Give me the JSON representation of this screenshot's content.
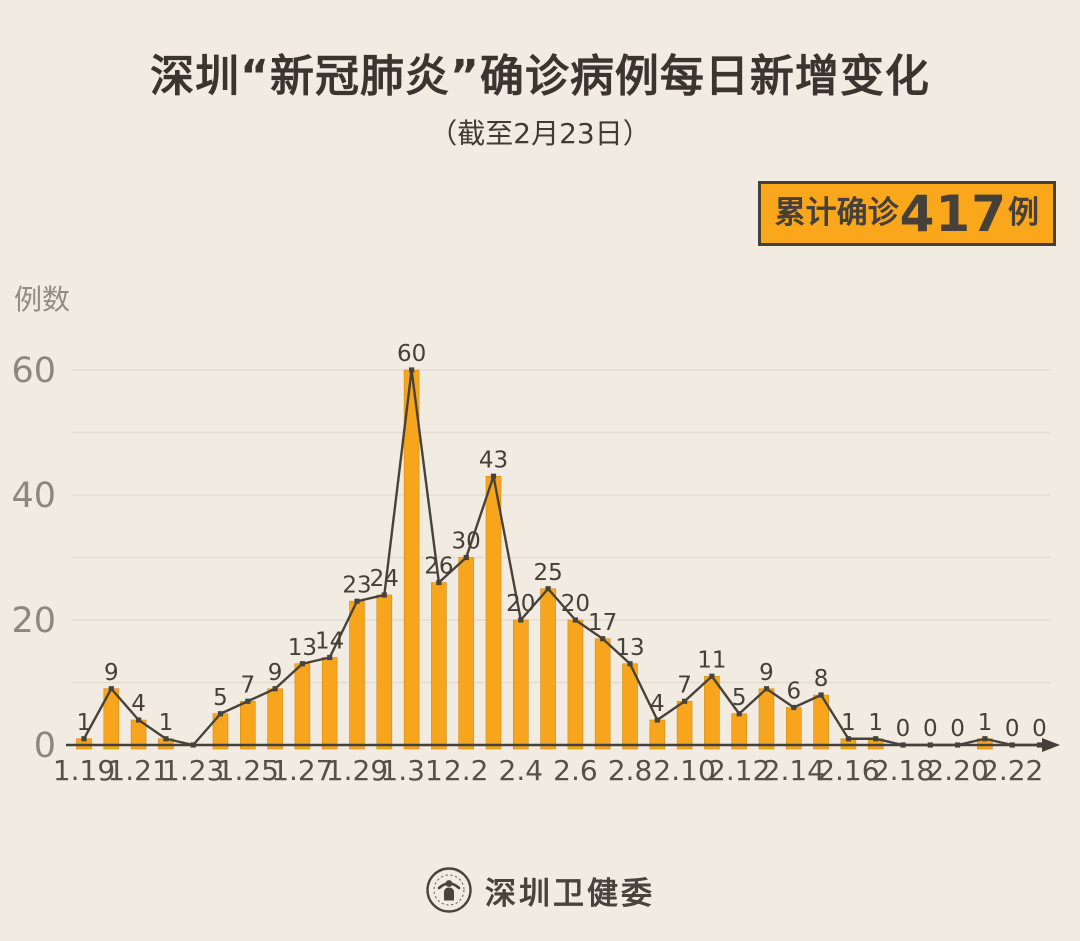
{
  "title": "深圳“新冠肺炎”确诊病例每日新增变化",
  "subtitle": "（截至2月23日）",
  "badge": {
    "prefix": "累计确诊",
    "value": "417",
    "suffix": "例"
  },
  "footer": {
    "org_name": "深圳卫健委"
  },
  "colors": {
    "background": "#F2EBE2",
    "bar": "#F7A51C",
    "bar_edge": "#D18C12",
    "line": "#48423C",
    "grid": "#E4DCD0",
    "axis": "#45403A",
    "y_tick_label": "#8E8780",
    "x_tick_label": "#55504A",
    "point_label": "#45403A",
    "badge_bg": "#FAA71C",
    "badge_border": "#45403A"
  },
  "chart_data": {
    "type": "bar",
    "note": "bar chart with overlaid line and square point markers; daily new confirmed cases",
    "title": "深圳“新冠肺炎”确诊病例每日新增变化（截至2月23日）",
    "xlabel": "",
    "ylabel": "例数",
    "categories": [
      "1.19",
      "1.20",
      "1.21",
      "1.22",
      "1.23",
      "1.24",
      "1.25",
      "1.26",
      "1.27",
      "1.28",
      "1.29",
      "1.30",
      "1.31",
      "2.1",
      "2.2",
      "2.3",
      "2.4",
      "2.5",
      "2.6",
      "2.7",
      "2.8",
      "2.9",
      "2.10",
      "2.11",
      "2.12",
      "2.13",
      "2.14",
      "2.15",
      "2.16",
      "2.17",
      "2.18",
      "2.19",
      "2.20",
      "2.21",
      "2.22",
      "2.23"
    ],
    "values": [
      1,
      9,
      4,
      1,
      0,
      5,
      7,
      9,
      13,
      14,
      23,
      24,
      60,
      26,
      30,
      43,
      20,
      25,
      20,
      17,
      13,
      4,
      7,
      11,
      5,
      9,
      6,
      8,
      1,
      1,
      0,
      0,
      0,
      1,
      0,
      0
    ],
    "point_labels": [
      "1",
      "9",
      "4",
      "1",
      "",
      "5",
      "7",
      "9",
      "13",
      "14",
      "23",
      "24",
      "60",
      "26",
      "30",
      "43",
      "20",
      "25",
      "20",
      "17",
      "13",
      "4",
      "7",
      "11",
      "5",
      "9",
      "6",
      "8",
      "1",
      "1",
      "0",
      "0",
      "0",
      "1",
      "0",
      "0"
    ],
    "x_tick_labels": [
      "1.19",
      "1.21",
      "1.23",
      "1.25",
      "1.27",
      "1.29",
      "1.31",
      "2.2",
      "2.4",
      "2.6",
      "2.8",
      "2.10",
      "2.12",
      "2.14",
      "2.16",
      "2.18",
      "2.20",
      "2.22"
    ],
    "x_tick_step": 2,
    "yticks": [
      0,
      20,
      40,
      60
    ],
    "ylim": [
      0,
      66
    ],
    "grid_step": 10,
    "grid": true,
    "legend": false,
    "total": 417
  }
}
